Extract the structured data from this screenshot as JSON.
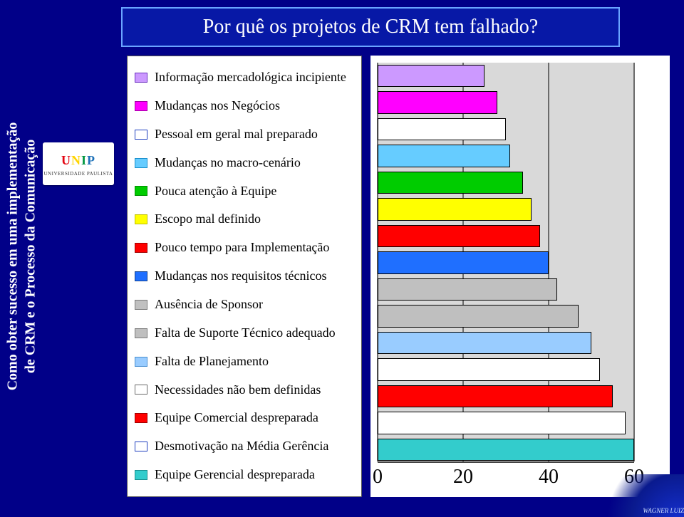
{
  "title": "Por quê os projetos de CRM tem falhado?",
  "side_label_line1": "Como obter sucesso em uma implementação",
  "side_label_line2": "de CRM e o Processo da Comunicação",
  "logo": {
    "text": "UNIP",
    "subtitle": "UNIVERSIDADE PAULISTA"
  },
  "watermark": "WAGNER LUIZ",
  "chart": {
    "type": "bar-horizontal",
    "xlim": [
      0,
      60
    ],
    "xticks": [
      0,
      20,
      40,
      60
    ],
    "xtick_fontsize": 28,
    "background_color": "#ffffff",
    "plot_background": "#d9d9d9",
    "grid_color": "#6b6b6b",
    "bar_border": "#000000",
    "legend_fontsize": 18,
    "items": [
      {
        "label": "Informação mercadológica incipiente",
        "value": 25,
        "fill": "#cc99ff",
        "swatch_border": "#6a2fbf"
      },
      {
        "label": "Mudanças nos Negócios",
        "value": 28,
        "fill": "#ff00ff",
        "swatch_border": "#a300a3"
      },
      {
        "label": "Pessoal em geral mal preparado",
        "value": 30,
        "fill": "#ffffff",
        "swatch_border": "#1f3fbf"
      },
      {
        "label": "Mudanças no macro-cenário",
        "value": 31,
        "fill": "#66ccff",
        "swatch_border": "#1a8fcc"
      },
      {
        "label": "Pouca atenção à Equipe",
        "value": 34,
        "fill": "#00cc00",
        "swatch_border": "#008f00"
      },
      {
        "label": "Escopo mal definido",
        "value": 36,
        "fill": "#ffff00",
        "swatch_border": "#bfbf00"
      },
      {
        "label": "Pouco tempo para Implementação",
        "value": 38,
        "fill": "#ff0000",
        "swatch_border": "#a00000"
      },
      {
        "label": "Mudanças nos requisitos técnicos",
        "value": 40,
        "fill": "#1f6fff",
        "swatch_border": "#10408f"
      },
      {
        "label": "Ausência de Sponsor",
        "value": 42,
        "fill": "#c0c0c0",
        "swatch_border": "#7a7a7a"
      },
      {
        "label": "Falta de Suporte Técnico adequado",
        "value": 47,
        "fill": "#bfbfbf",
        "swatch_border": "#7a7a7a"
      },
      {
        "label": "Falta de Planejamento",
        "value": 50,
        "fill": "#99ccff",
        "swatch_border": "#4a8fd0"
      },
      {
        "label": "Necessidades não bem definidas",
        "value": 52,
        "fill": "#ffffff",
        "swatch_border": "#6b6b6b"
      },
      {
        "label": "Equipe Comercial despreparada",
        "value": 55,
        "fill": "#ff0000",
        "swatch_border": "#a00000"
      },
      {
        "label": "Desmotivação na Média Gerência",
        "value": 58,
        "fill": "#ffffff",
        "swatch_border": "#1f3fbf"
      },
      {
        "label": "Equipe Gerencial despreparada",
        "value": 60,
        "fill": "#33cccc",
        "swatch_border": "#1a8f8f"
      }
    ]
  }
}
